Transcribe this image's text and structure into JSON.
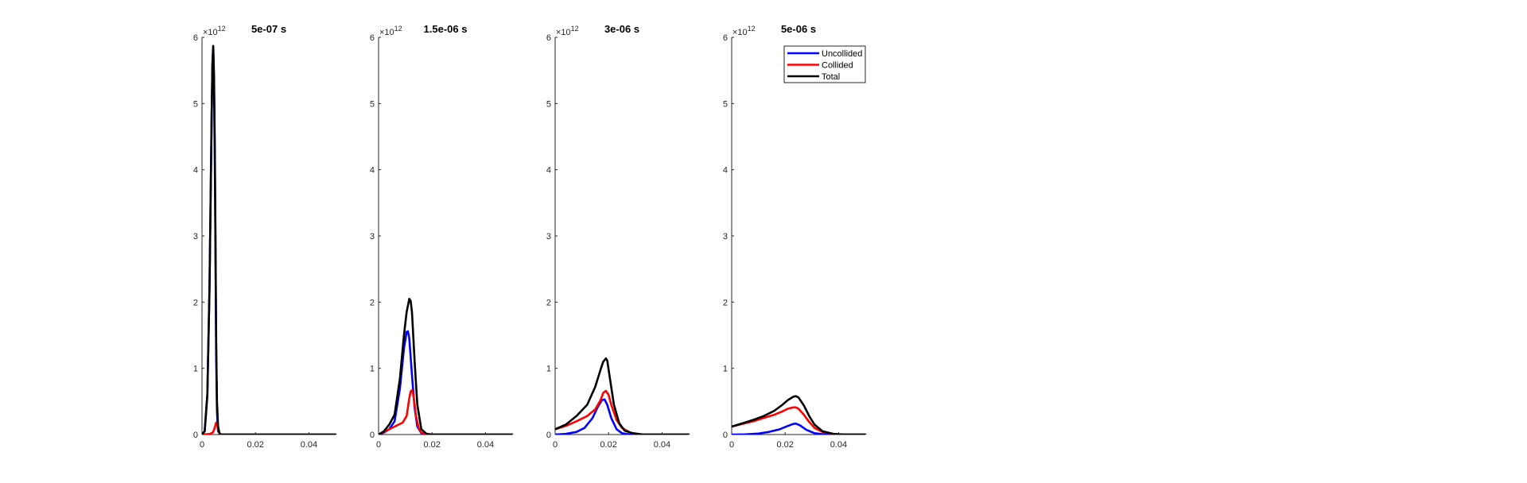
{
  "chart_data": [
    {
      "type": "line",
      "title": "5e-07 s",
      "xlabel": "",
      "ylabel": "",
      "xlim": [
        0,
        0.05
      ],
      "ylim": [
        0,
        6000000000000.0
      ],
      "x_ticks": [
        "0",
        "0.02",
        "0.04"
      ],
      "x_tick_values": [
        0,
        0.02,
        0.04
      ],
      "y_ticks": [
        "0",
        "1",
        "2",
        "3",
        "4",
        "5",
        "6"
      ],
      "y_tick_values": [
        0,
        1000000000000.0,
        2000000000000.0,
        3000000000000.0,
        4000000000000.0,
        5000000000000.0,
        6000000000000.0
      ],
      "y_exponent": {
        "base": "×10",
        "power": "12"
      },
      "grid": false,
      "series": [
        {
          "color": "#0000ff",
          "x": [
            0,
            0.001,
            0.002,
            0.0028,
            0.0033,
            0.0036,
            0.0039,
            0.0042,
            0.0045,
            0.0048,
            0.005,
            0.0053,
            0.0056,
            0.006,
            0.007,
            0.02,
            0.05
          ],
          "y": [
            0,
            50000000000.0,
            600000000000.0,
            2200000000000.0,
            3800000000000.0,
            4800000000000.0,
            5600000000000.0,
            5850000000000.0,
            5300000000000.0,
            4100000000000.0,
            3000000000000.0,
            1200000000000.0,
            350000000000.0,
            50000000000.0,
            0,
            0,
            0
          ]
        },
        {
          "color": "#ff0000",
          "x": [
            0,
            0.003,
            0.004,
            0.0045,
            0.005,
            0.0053,
            0.0056,
            0.006,
            0.0065,
            0.007,
            0.02,
            0.05
          ],
          "y": [
            0,
            10000000000.0,
            30000000000.0,
            70000000000.0,
            140000000000.0,
            180000000000.0,
            160000000000.0,
            80000000000.0,
            20000000000.0,
            0,
            0,
            0
          ]
        },
        {
          "color": "#000000",
          "x": [
            0,
            0.001,
            0.002,
            0.0028,
            0.0033,
            0.0036,
            0.0039,
            0.0042,
            0.0045,
            0.0048,
            0.005,
            0.0053,
            0.0056,
            0.006,
            0.0065,
            0.007,
            0.02,
            0.05
          ],
          "y": [
            0,
            50000000000.0,
            600000000000.0,
            2200000000000.0,
            3800000000000.0,
            4800000000000.0,
            5600000000000.0,
            5870000000000.0,
            5400000000000.0,
            4300000000000.0,
            3200000000000.0,
            1400000000000.0,
            500000000000.0,
            130000000000.0,
            20000000000.0,
            0,
            0,
            0
          ]
        }
      ]
    },
    {
      "type": "line",
      "title": "1.5e-06 s",
      "xlabel": "",
      "ylabel": "",
      "xlim": [
        0,
        0.05
      ],
      "ylim": [
        0,
        6000000000000.0
      ],
      "x_ticks": [
        "0",
        "0.02",
        "0.04"
      ],
      "x_tick_values": [
        0,
        0.02,
        0.04
      ],
      "y_ticks": [
        "0",
        "1",
        "2",
        "3",
        "4",
        "5",
        "6"
      ],
      "y_tick_values": [
        0,
        1000000000000.0,
        2000000000000.0,
        3000000000000.0,
        4000000000000.0,
        5000000000000.0,
        6000000000000.0
      ],
      "y_exponent": {
        "base": "×10",
        "power": "12"
      },
      "grid": false,
      "series": [
        {
          "color": "#0000ff",
          "x": [
            0,
            0.002,
            0.004,
            0.006,
            0.008,
            0.0095,
            0.0105,
            0.011,
            0.0115,
            0.0125,
            0.0135,
            0.0145,
            0.016,
            0.018,
            0.02,
            0.05
          ],
          "y": [
            0,
            30000000000.0,
            80000000000.0,
            200000000000.0,
            700000000000.0,
            1300000000000.0,
            1550000000000.0,
            1560000000000.0,
            1450000000000.0,
            900000000000.0,
            400000000000.0,
            120000000000.0,
            20000000000.0,
            0,
            0,
            0
          ]
        },
        {
          "color": "#ff0000",
          "x": [
            0,
            0.003,
            0.006,
            0.009,
            0.0105,
            0.0115,
            0.012,
            0.0125,
            0.013,
            0.0135,
            0.014,
            0.015,
            0.016,
            0.018,
            0.02,
            0.05
          ],
          "y": [
            0,
            60000000000.0,
            120000000000.0,
            180000000000.0,
            280000000000.0,
            550000000000.0,
            650000000000.0,
            670000000000.0,
            600000000000.0,
            450000000000.0,
            280000000000.0,
            100000000000.0,
            30000000000.0,
            0,
            0,
            0
          ]
        },
        {
          "color": "#000000",
          "x": [
            0,
            0.002,
            0.004,
            0.006,
            0.008,
            0.0095,
            0.0105,
            0.0115,
            0.012,
            0.0125,
            0.0135,
            0.0145,
            0.016,
            0.018,
            0.02,
            0.05
          ],
          "y": [
            0,
            50000000000.0,
            150000000000.0,
            300000000000.0,
            850000000000.0,
            1500000000000.0,
            1850000000000.0,
            2050000000000.0,
            2020000000000.0,
            1850000000000.0,
            1100000000000.0,
            450000000000.0,
            80000000000.0,
            10000000000.0,
            0,
            0
          ]
        }
      ]
    },
    {
      "type": "line",
      "title": "3e-06 s",
      "xlabel": "",
      "ylabel": "",
      "xlim": [
        0,
        0.05
      ],
      "ylim": [
        0,
        6000000000000.0
      ],
      "x_ticks": [
        "0",
        "0.02",
        "0.04"
      ],
      "x_tick_values": [
        0,
        0.02,
        0.04
      ],
      "y_ticks": [
        "0",
        "1",
        "2",
        "3",
        "4",
        "5",
        "6"
      ],
      "y_tick_values": [
        0,
        1000000000000.0,
        2000000000000.0,
        3000000000000.0,
        4000000000000.0,
        5000000000000.0,
        6000000000000.0
      ],
      "y_exponent": {
        "base": "×10",
        "power": "12"
      },
      "grid": false,
      "series": [
        {
          "color": "#0000ff",
          "x": [
            0,
            0.004,
            0.008,
            0.011,
            0.014,
            0.016,
            0.0175,
            0.0185,
            0.0195,
            0.021,
            0.023,
            0.025,
            0.028,
            0.032,
            0.05
          ],
          "y": [
            0,
            10000000000.0,
            40000000000.0,
            100000000000.0,
            250000000000.0,
            420000000000.0,
            520000000000.0,
            530000000000.0,
            450000000000.0,
            250000000000.0,
            80000000000.0,
            20000000000.0,
            0,
            0,
            0
          ]
        },
        {
          "color": "#ff0000",
          "x": [
            0,
            0.004,
            0.008,
            0.012,
            0.015,
            0.017,
            0.018,
            0.019,
            0.02,
            0.021,
            0.023,
            0.025,
            0.028,
            0.032,
            0.05
          ],
          "y": [
            80000000000.0,
            130000000000.0,
            200000000000.0,
            280000000000.0,
            380000000000.0,
            520000000000.0,
            630000000000.0,
            660000000000.0,
            600000000000.0,
            450000000000.0,
            220000000000.0,
            100000000000.0,
            30000000000.0,
            0,
            0
          ]
        },
        {
          "color": "#000000",
          "x": [
            0,
            0.004,
            0.008,
            0.012,
            0.015,
            0.017,
            0.018,
            0.019,
            0.0195,
            0.0205,
            0.022,
            0.024,
            0.026,
            0.029,
            0.033,
            0.05
          ],
          "y": [
            80000000000.0,
            150000000000.0,
            280000000000.0,
            450000000000.0,
            720000000000.0,
            980000000000.0,
            1100000000000.0,
            1150000000000.0,
            1120000000000.0,
            850000000000.0,
            450000000000.0,
            170000000000.0,
            60000000000.0,
            20000000000.0,
            0,
            0
          ]
        }
      ]
    },
    {
      "type": "line",
      "title": "5e-06 s",
      "xlabel": "",
      "ylabel": "",
      "xlim": [
        0,
        0.05
      ],
      "ylim": [
        0,
        6000000000000.0
      ],
      "x_ticks": [
        "0",
        "0.02",
        "0.04"
      ],
      "x_tick_values": [
        0,
        0.02,
        0.04
      ],
      "y_ticks": [
        "0",
        "1",
        "2",
        "3",
        "4",
        "5",
        "6"
      ],
      "y_tick_values": [
        0,
        1000000000000.0,
        2000000000000.0,
        3000000000000.0,
        4000000000000.0,
        5000000000000.0,
        6000000000000.0
      ],
      "y_exponent": {
        "base": "×10",
        "power": "12"
      },
      "grid": false,
      "legend": {
        "placement": "top-right",
        "entries": [
          {
            "label": "Uncollided",
            "color": "#0000ff"
          },
          {
            "label": "Collided",
            "color": "#ff0000"
          },
          {
            "label": "Total",
            "color": "#000000"
          }
        ]
      },
      "series": [
        {
          "name": "Uncollided",
          "color": "#0000ff",
          "x": [
            0,
            0.005,
            0.01,
            0.014,
            0.018,
            0.021,
            0.023,
            0.024,
            0.0255,
            0.028,
            0.031,
            0.034,
            0.038,
            0.05
          ],
          "y": [
            0,
            3000000000.0,
            15000000000.0,
            40000000000.0,
            80000000000.0,
            130000000000.0,
            160000000000.0,
            165000000000.0,
            140000000000.0,
            70000000000.0,
            20000000000.0,
            5000000000.0,
            0,
            0
          ]
        },
        {
          "name": "Collided",
          "color": "#ff0000",
          "x": [
            0,
            0.004,
            0.008,
            0.012,
            0.016,
            0.019,
            0.021,
            0.023,
            0.024,
            0.025,
            0.027,
            0.029,
            0.031,
            0.034,
            0.038,
            0.042,
            0.05
          ],
          "y": [
            120000000000.0,
            160000000000.0,
            200000000000.0,
            250000000000.0,
            300000000000.0,
            350000000000.0,
            390000000000.0,
            410000000000.0,
            410000000000.0,
            390000000000.0,
            300000000000.0,
            190000000000.0,
            100000000000.0,
            40000000000.0,
            10000000000.0,
            0,
            0
          ]
        },
        {
          "name": "Total",
          "color": "#000000",
          "x": [
            0,
            0.004,
            0.008,
            0.012,
            0.016,
            0.019,
            0.021,
            0.023,
            0.024,
            0.025,
            0.027,
            0.029,
            0.031,
            0.034,
            0.038,
            0.042,
            0.05
          ],
          "y": [
            120000000000.0,
            170000000000.0,
            220000000000.0,
            280000000000.0,
            360000000000.0,
            450000000000.0,
            520000000000.0,
            570000000000.0,
            580000000000.0,
            560000000000.0,
            440000000000.0,
            280000000000.0,
            150000000000.0,
            50000000000.0,
            10000000000.0,
            0,
            0
          ]
        }
      ]
    }
  ]
}
